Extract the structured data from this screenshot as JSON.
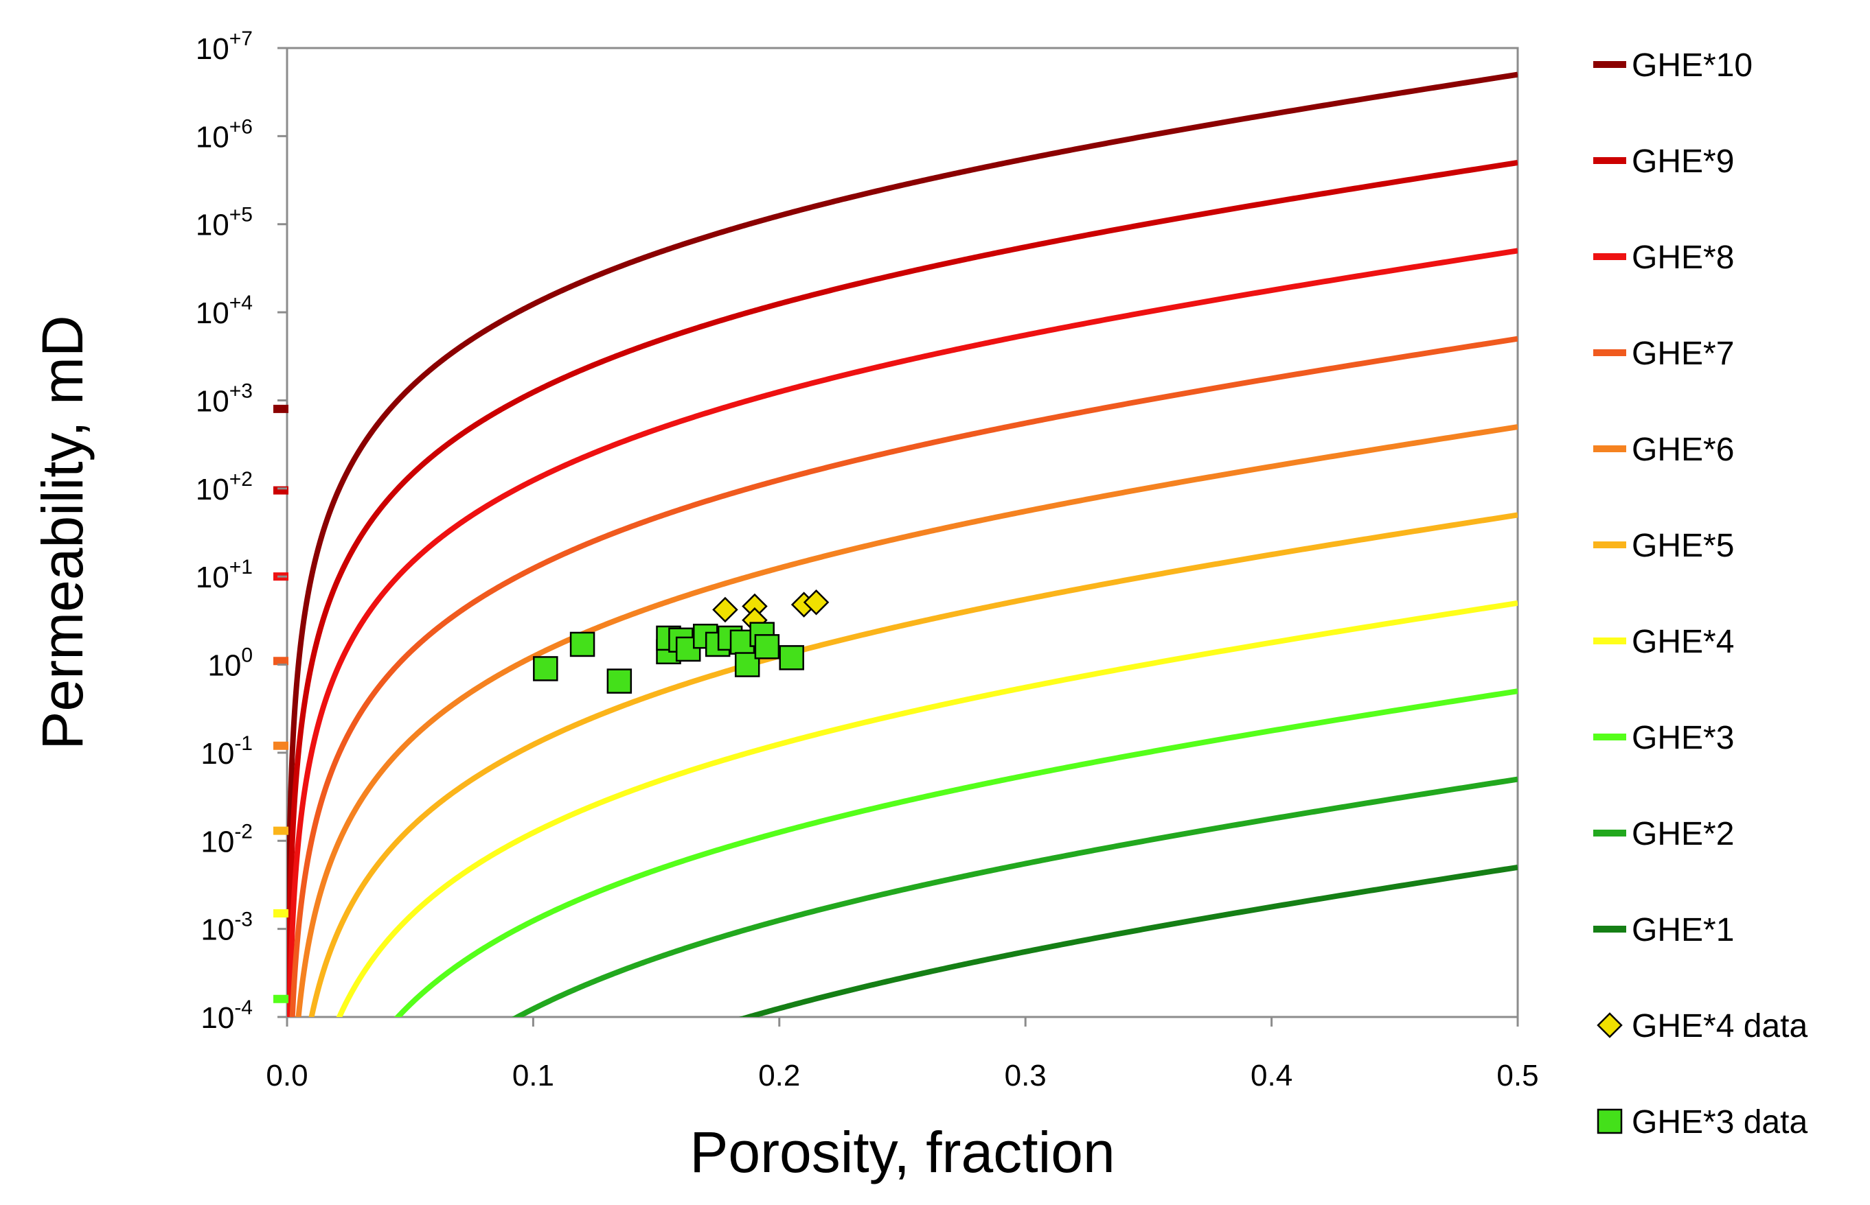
{
  "chart_data": {
    "type": "line",
    "title": "",
    "xlabel": "Porosity, fraction",
    "ylabel": "Permeability, mD",
    "xlim": [
      0,
      0.5
    ],
    "ylim_log10": [
      -4,
      7
    ],
    "y_scale": "log",
    "grid": false,
    "legend_position": "right",
    "x_ticks": [
      "0.0",
      "0.1",
      "0.2",
      "0.3",
      "0.4",
      "0.5"
    ],
    "y_ticks": [
      {
        "base": "10",
        "exp": "-4"
      },
      {
        "base": "10",
        "exp": "-3"
      },
      {
        "base": "10",
        "exp": "-2"
      },
      {
        "base": "10",
        "exp": "-1"
      },
      {
        "base": "10",
        "exp": "0"
      },
      {
        "base": "10",
        "exp": "+1"
      },
      {
        "base": "10",
        "exp": "+2"
      },
      {
        "base": "10",
        "exp": "+3"
      },
      {
        "base": "10",
        "exp": "+4"
      },
      {
        "base": "10",
        "exp": "+5"
      },
      {
        "base": "10",
        "exp": "+6"
      },
      {
        "base": "10",
        "exp": "+7"
      }
    ],
    "curve_model": "k = 10^(n-3) * phi^3 / (1-phi)^2 ; n = GHE unit number",
    "series": [
      {
        "name": "GHE*10",
        "n": 10,
        "color": "#8b0000",
        "y_intercept_marker": 800
      },
      {
        "name": "GHE*9",
        "n": 9,
        "color": "#cc0000",
        "y_intercept_marker": 95
      },
      {
        "name": "GHE*8",
        "n": 8,
        "color": "#ee1111",
        "y_intercept_marker": 10
      },
      {
        "name": "GHE*7",
        "n": 7,
        "color": "#f05a1e",
        "y_intercept_marker": 1.1
      },
      {
        "name": "GHE*6",
        "n": 6,
        "color": "#f58220",
        "y_intercept_marker": 0.12
      },
      {
        "name": "GHE*5",
        "n": 5,
        "color": "#fbb41a",
        "y_intercept_marker": 0.013
      },
      {
        "name": "GHE*4",
        "n": 4,
        "color": "#ffff1a",
        "y_intercept_marker": 0.0015
      },
      {
        "name": "GHE*3",
        "n": 3,
        "color": "#55ff1a",
        "y_intercept_marker": 0.00016
      },
      {
        "name": "GHE*2",
        "n": 2,
        "color": "#22a81e",
        "y_intercept_marker": null
      },
      {
        "name": "GHE*1",
        "n": 1,
        "color": "#157f15",
        "y_intercept_marker": null
      }
    ],
    "scatter": [
      {
        "name": "GHE*4 data",
        "marker": "diamond",
        "color": "#f0e000",
        "points": [
          {
            "x": 0.178,
            "y": 4.2
          },
          {
            "x": 0.19,
            "y": 4.6
          },
          {
            "x": 0.21,
            "y": 4.8
          },
          {
            "x": 0.215,
            "y": 5.1
          },
          {
            "x": 0.19,
            "y": 3.2
          }
        ]
      },
      {
        "name": "GHE*3 data",
        "marker": "square",
        "color": "#44e01a",
        "points": [
          {
            "x": 0.105,
            "y": 0.9
          },
          {
            "x": 0.12,
            "y": 1.7
          },
          {
            "x": 0.135,
            "y": 0.65
          },
          {
            "x": 0.155,
            "y": 1.4
          },
          {
            "x": 0.155,
            "y": 2.0
          },
          {
            "x": 0.16,
            "y": 1.9
          },
          {
            "x": 0.163,
            "y": 1.5
          },
          {
            "x": 0.17,
            "y": 2.1
          },
          {
            "x": 0.175,
            "y": 1.7
          },
          {
            "x": 0.18,
            "y": 2.0
          },
          {
            "x": 0.185,
            "y": 1.8
          },
          {
            "x": 0.187,
            "y": 1.0
          },
          {
            "x": 0.193,
            "y": 2.2
          },
          {
            "x": 0.195,
            "y": 1.6
          },
          {
            "x": 0.205,
            "y": 1.2
          }
        ]
      }
    ]
  }
}
